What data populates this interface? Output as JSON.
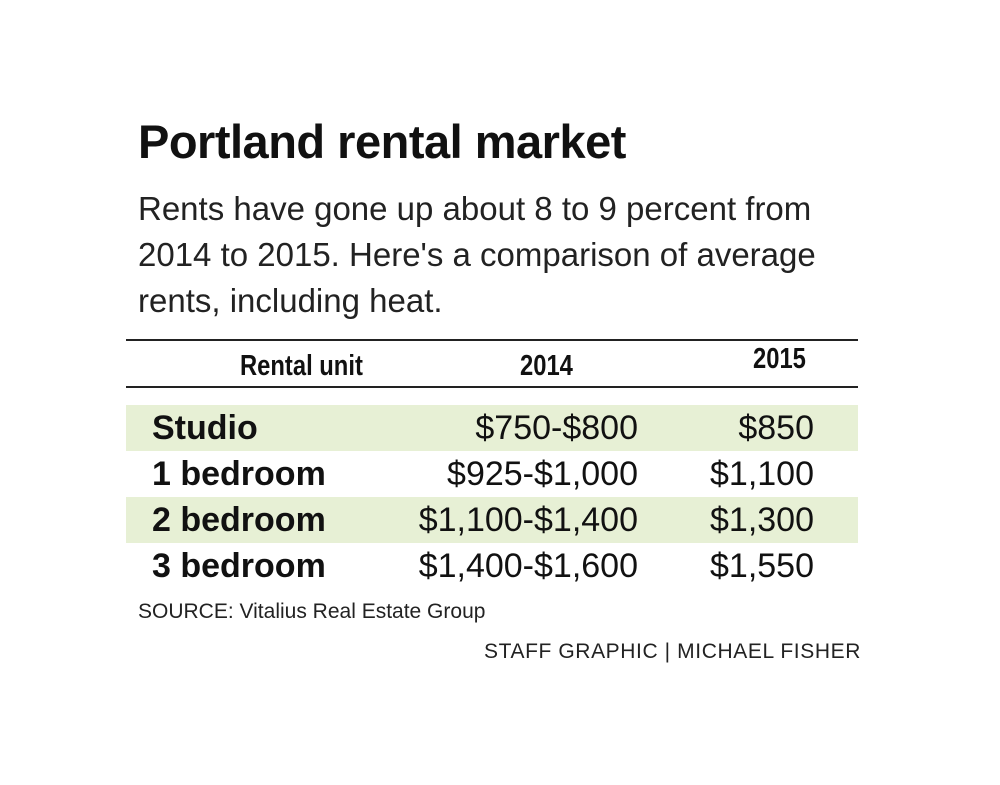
{
  "header": {
    "title": "Portland rental market",
    "subtitle": "Rents have gone up about 8 to 9 percent from 2014 to 2015. Here's a comparison of average rents, including heat."
  },
  "chart_data": {
    "type": "table",
    "title": "Portland rental market",
    "columns": [
      "Rental unit",
      "2014",
      "2015"
    ],
    "rows": [
      {
        "unit": "Studio",
        "v2014": "$750-$800",
        "v2015": "$850",
        "shaded": true
      },
      {
        "unit": "1 bedroom",
        "v2014": "$925-$1,000",
        "v2015": "$1,100",
        "shaded": false
      },
      {
        "unit": "2 bedroom",
        "v2014": "$1,100-$1,400",
        "v2015": "$1,300",
        "shaded": true
      },
      {
        "unit": "3 bedroom",
        "v2014": "$1,400-$1,600",
        "v2015": "$1,550",
        "shaded": false
      }
    ]
  },
  "footer": {
    "source": "SOURCE: Vitalius Real Estate Group",
    "credit": "STAFF GRAPHIC | MICHAEL FISHER"
  },
  "colors": {
    "row_shade": "#e7f0d5",
    "text": "#111111",
    "rule": "#222222"
  }
}
